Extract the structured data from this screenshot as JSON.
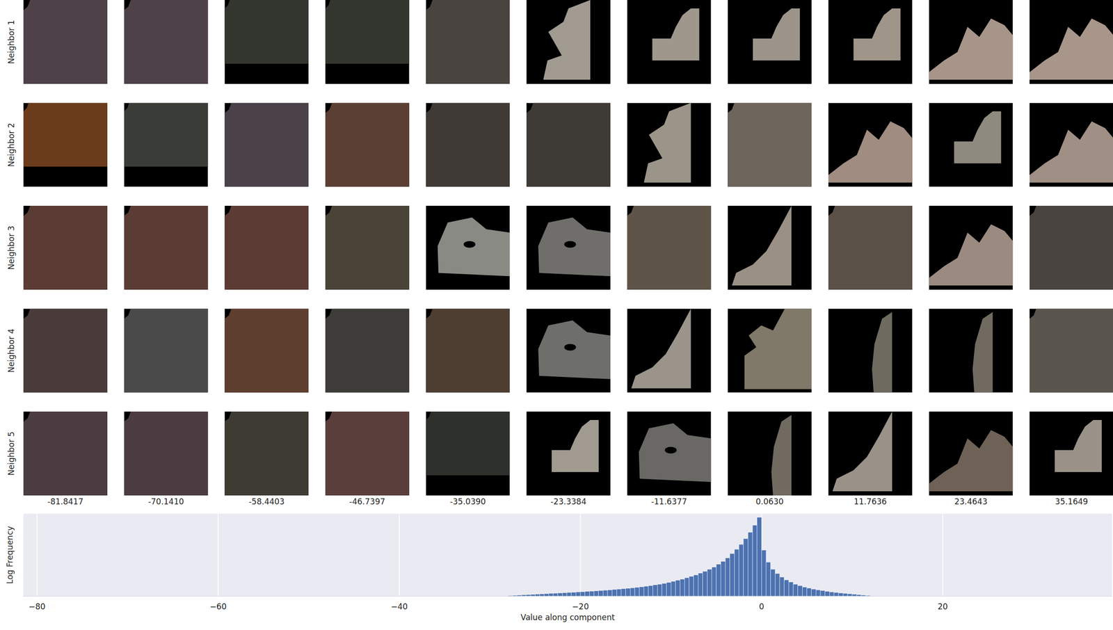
{
  "chart_data": {
    "type": "histogram",
    "xlabel": "Value along component",
    "ylabel": "Log Frequency",
    "bins": [
      -28,
      -27.5,
      -27,
      -26.5,
      -26,
      -25.5,
      -25,
      -24.5,
      -24,
      -23.5,
      -23,
      -22.5,
      -22,
      -21.5,
      -21,
      -20.5,
      -20,
      -19.5,
      -19,
      -18.5,
      -18,
      -17.5,
      -17,
      -16.5,
      -16,
      -15.5,
      -15,
      -14.5,
      -14,
      -13.5,
      -13,
      -12.5,
      -12,
      -11.5,
      -11,
      -10.5,
      -10,
      -9.5,
      -9,
      -8.5,
      -8,
      -7.5,
      -7,
      -6.5,
      -6,
      -5.5,
      -5,
      -4.5,
      -4,
      -3.5,
      -3,
      -2.5,
      -2,
      -1.5,
      -1,
      -0.5,
      0,
      0.5,
      1,
      1.5,
      2,
      2.5,
      3,
      3.5,
      4,
      4.5,
      5,
      5.5,
      6,
      6.5,
      7,
      7.5,
      8,
      8.5,
      9,
      9.5,
      10,
      10.5,
      11,
      11.5,
      12
    ],
    "values": [
      0.1,
      0.13,
      0.16,
      0.2,
      0.23,
      0.26,
      0.3,
      0.33,
      0.36,
      0.4,
      0.43,
      0.46,
      0.5,
      0.53,
      0.56,
      0.6,
      0.64,
      0.68,
      0.72,
      0.76,
      0.8,
      0.85,
      0.9,
      0.95,
      1.0,
      1.06,
      1.12,
      1.18,
      1.25,
      1.32,
      1.4,
      1.5,
      1.6,
      1.7,
      1.8,
      1.95,
      2.1,
      2.25,
      2.4,
      2.6,
      2.8,
      3.0,
      3.25,
      3.5,
      3.8,
      4.1,
      4.5,
      4.9,
      5.4,
      6.0,
      6.6,
      7.3,
      8.1,
      9.0,
      10.0,
      11.1,
      6.5,
      4.8,
      3.8,
      3.2,
      2.7,
      2.3,
      2.0,
      1.7,
      1.5,
      1.3,
      1.15,
      1.0,
      0.9,
      0.8,
      0.7,
      0.6,
      0.53,
      0.46,
      0.4,
      0.34,
      0.28,
      0.22,
      0.17,
      0.12
    ],
    "color": "#4c72b0",
    "xlim": [
      -81.5,
      38.7
    ],
    "xticks": [
      {
        "value": -80,
        "label": "−80"
      },
      {
        "value": -60,
        "label": "−60"
      },
      {
        "value": -40,
        "label": "−40"
      },
      {
        "value": -20,
        "label": "−20"
      },
      0,
      20
    ],
    "ylim": [
      0,
      11.6
    ],
    "grid": true,
    "tick_labels": "x"
  },
  "patch_grid": {
    "row_labels": [
      "Neighbor 1",
      "Neighbor 2",
      "Neighbor 3",
      "Neighbor 4",
      "Neighbor 5"
    ],
    "column_values": [
      -81.8417,
      {
        "value": -70.141,
        "label": "-70.1410"
      },
      -58.4403,
      -46.7397,
      {
        "value": -35.039,
        "label": "-35.0390"
      },
      -23.3384,
      -11.6377,
      {
        "value": 0.063,
        "label": "0.0630"
      },
      11.7636,
      23.4643,
      35.1649
    ],
    "cells": [
      [
        {
          "color": "#4e4248",
          "shape": "full"
        },
        {
          "color": "#4e4248",
          "shape": "full"
        },
        {
          "color": "#33352f",
          "shape": "topband"
        },
        {
          "color": "#33352f",
          "shape": "topband"
        },
        {
          "color": "#4a4440",
          "shape": "full"
        },
        {
          "color": "#a09a90",
          "shape": "tall"
        },
        {
          "color": "#9f968c",
          "shape": "step"
        },
        {
          "color": "#9c948a",
          "shape": "step"
        },
        {
          "color": "#a09589",
          "shape": "step"
        },
        {
          "color": "#a8958a",
          "shape": "wave"
        },
        {
          "color": "#a8968a",
          "shape": "wave"
        }
      ],
      [
        {
          "color": "#6b3c1c",
          "shape": "topband"
        },
        {
          "color": "#3a3d37",
          "shape": "topband"
        },
        {
          "color": "#4a4248",
          "shape": "full"
        },
        {
          "color": "#5a3f32",
          "shape": "full"
        },
        {
          "color": "#403a36",
          "shape": "full"
        },
        {
          "color": "#3e3a36",
          "shape": "full"
        },
        {
          "color": "#9b9488",
          "shape": "tall"
        },
        {
          "color": "#6e655c",
          "shape": "full"
        },
        {
          "color": "#a08c80",
          "shape": "wave"
        },
        {
          "color": "#8e8a80",
          "shape": "step"
        },
        {
          "color": "#a08f84",
          "shape": "wave"
        }
      ],
      [
        {
          "color": "#5a3c34",
          "shape": "full"
        },
        {
          "color": "#5a3c34",
          "shape": "full"
        },
        {
          "color": "#5a3c34",
          "shape": "full"
        },
        {
          "color": "#4a4438",
          "shape": "full"
        },
        {
          "color": "#8a8a85",
          "shape": "blob"
        },
        {
          "color": "#6f6e6a",
          "shape": "blob"
        },
        {
          "color": "#5e5448",
          "shape": "full"
        },
        {
          "color": "#9a9086",
          "shape": "ramp"
        },
        {
          "color": "#5a5048",
          "shape": "full"
        },
        {
          "color": "#9a8a80",
          "shape": "wave"
        },
        {
          "color": "#4a4440",
          "shape": "full"
        }
      ],
      [
        {
          "color": "#4a3c3a",
          "shape": "full"
        },
        {
          "color": "#4a4a4a",
          "shape": "full"
        },
        {
          "color": "#5e3e2e",
          "shape": "full"
        },
        {
          "color": "#3e3c38",
          "shape": "full"
        },
        {
          "color": "#4e3e32",
          "shape": "full"
        },
        {
          "color": "#6e6e6a",
          "shape": "blob"
        },
        {
          "color": "#9a948a",
          "shape": "ramp"
        },
        {
          "color": "#807868",
          "shape": "edge"
        },
        {
          "color": "#6e6a60",
          "shape": "vertical"
        },
        {
          "color": "#706a60",
          "shape": "vertical"
        },
        {
          "color": "#5a564e",
          "shape": "full"
        }
      ],
      [
        {
          "color": "#4a3c40",
          "shape": "full"
        },
        {
          "color": "#4a3c40",
          "shape": "full"
        },
        {
          "color": "#3e3c32",
          "shape": "full"
        },
        {
          "color": "#5a3e3c",
          "shape": "full"
        },
        {
          "color": "#2e302c",
          "shape": "topband"
        },
        {
          "color": "#a09a90",
          "shape": "step"
        },
        {
          "color": "#6a6864",
          "shape": "blob"
        },
        {
          "color": "#706a60",
          "shape": "vertical"
        },
        {
          "color": "#9a9288",
          "shape": "ramp"
        },
        {
          "color": "#6e6256",
          "shape": "wave"
        },
        {
          "color": "#9a9288",
          "shape": "step"
        }
      ]
    ]
  }
}
